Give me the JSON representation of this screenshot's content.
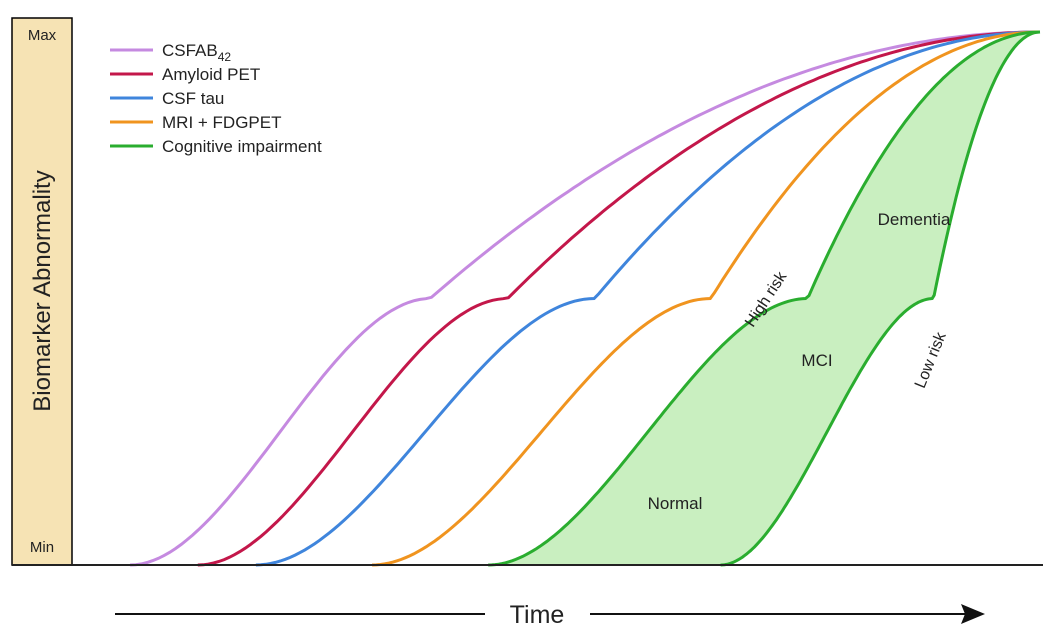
{
  "chart_data": {
    "type": "line",
    "title": "",
    "ylabel": "Biomarker Abnormality",
    "xlabel": "Time",
    "y_ticks": [
      "Min",
      "Max"
    ],
    "ylim": [
      0,
      1
    ],
    "legend_position": "top-left",
    "series": [
      {
        "name": "CSFAB",
        "name_subscript": "42",
        "color": "#c58ae0",
        "onset": 0.06,
        "midpoint": 0.37
      },
      {
        "name": "Amyloid PET",
        "color": "#c3174a",
        "onset": 0.13,
        "midpoint": 0.45
      },
      {
        "name": "CSF tau",
        "color": "#3f85dc",
        "onset": 0.19,
        "midpoint": 0.54
      },
      {
        "name": "MRI + FDGPET",
        "color": "#f0941f",
        "onset": 0.31,
        "midpoint": 0.66
      },
      {
        "name": "Cognitive impairment",
        "color": "#2aad2f",
        "onset": 0.43,
        "midpoint": 0.76
      }
    ],
    "low_risk_curve": {
      "color": "#2aad2f",
      "onset": 0.67,
      "midpoint": 0.89
    },
    "shaded_region_color": "#c9efc0",
    "annotations": {
      "high_risk": "High risk",
      "low_risk": "Low risk",
      "normal": "Normal",
      "mci": "MCI",
      "dementia": "Dementia"
    },
    "axis_band_color": "#f6e3b4"
  }
}
